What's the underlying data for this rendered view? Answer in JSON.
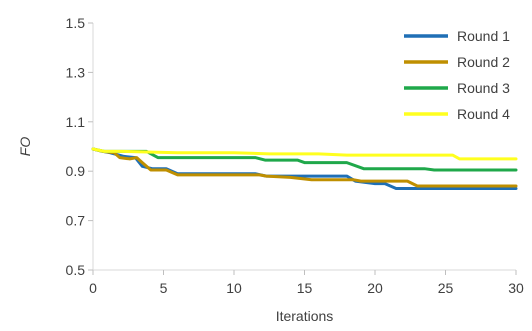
{
  "chart_data": {
    "type": "line",
    "title": "",
    "xlabel": "Iterations",
    "ylabel": "FO",
    "xlim": [
      0,
      30
    ],
    "ylim": [
      0.5,
      1.5
    ],
    "x_ticks": [
      "0",
      "5",
      "10",
      "15",
      "20",
      "25",
      "30"
    ],
    "y_ticks": [
      "0.5",
      "0.7",
      "0.9",
      "1.1",
      "1.3",
      "1.5"
    ],
    "grid": false,
    "legend_position": "top-right",
    "series": [
      {
        "name": "Round 1",
        "color": "#1F6FB5",
        "points": [
          [
            0,
            0.99
          ],
          [
            0.7,
            0.98
          ],
          [
            1.2,
            0.975
          ],
          [
            2.2,
            0.96
          ],
          [
            3.0,
            0.955
          ],
          [
            3.5,
            0.92
          ],
          [
            4.2,
            0.91
          ],
          [
            5.2,
            0.91
          ],
          [
            6.0,
            0.89
          ],
          [
            8,
            0.89
          ],
          [
            10,
            0.89
          ],
          [
            11.5,
            0.89
          ],
          [
            12.3,
            0.88
          ],
          [
            14,
            0.88
          ],
          [
            16,
            0.88
          ],
          [
            18.0,
            0.88
          ],
          [
            18.6,
            0.86
          ],
          [
            20,
            0.85
          ],
          [
            20.7,
            0.85
          ],
          [
            21.5,
            0.83
          ],
          [
            25,
            0.83
          ],
          [
            30,
            0.83
          ]
        ]
      },
      {
        "name": "Round 2",
        "color": "#BF8F00",
        "points": [
          [
            0,
            0.99
          ],
          [
            0.7,
            0.98
          ],
          [
            1.5,
            0.975
          ],
          [
            1.9,
            0.955
          ],
          [
            2.6,
            0.95
          ],
          [
            3.1,
            0.955
          ],
          [
            3.5,
            0.935
          ],
          [
            4.1,
            0.905
          ],
          [
            5.2,
            0.905
          ],
          [
            6.0,
            0.885
          ],
          [
            8,
            0.885
          ],
          [
            11.8,
            0.885
          ],
          [
            12.3,
            0.88
          ],
          [
            14.0,
            0.875
          ],
          [
            15.5,
            0.865
          ],
          [
            18.5,
            0.865
          ],
          [
            19.0,
            0.86
          ],
          [
            22.3,
            0.86
          ],
          [
            23.0,
            0.84
          ],
          [
            25,
            0.84
          ],
          [
            30,
            0.84
          ]
        ]
      },
      {
        "name": "Round 3",
        "color": "#1FA84A",
        "points": [
          [
            0,
            0.99
          ],
          [
            0.8,
            0.98
          ],
          [
            3.8,
            0.98
          ],
          [
            4.6,
            0.955
          ],
          [
            6,
            0.955
          ],
          [
            10,
            0.955
          ],
          [
            11.5,
            0.955
          ],
          [
            12.2,
            0.945
          ],
          [
            14.5,
            0.945
          ],
          [
            15.0,
            0.935
          ],
          [
            18,
            0.935
          ],
          [
            19.2,
            0.91
          ],
          [
            22,
            0.91
          ],
          [
            23.5,
            0.91
          ],
          [
            24.2,
            0.905
          ],
          [
            30,
            0.905
          ]
        ]
      },
      {
        "name": "Round 4",
        "color": "#FFFF1F",
        "points": [
          [
            0,
            0.99
          ],
          [
            0.8,
            0.98
          ],
          [
            2,
            0.98
          ],
          [
            6,
            0.975
          ],
          [
            10,
            0.975
          ],
          [
            12.5,
            0.97
          ],
          [
            16,
            0.97
          ],
          [
            18,
            0.965
          ],
          [
            25.5,
            0.965
          ],
          [
            26.0,
            0.95
          ],
          [
            30,
            0.95
          ]
        ]
      }
    ]
  }
}
